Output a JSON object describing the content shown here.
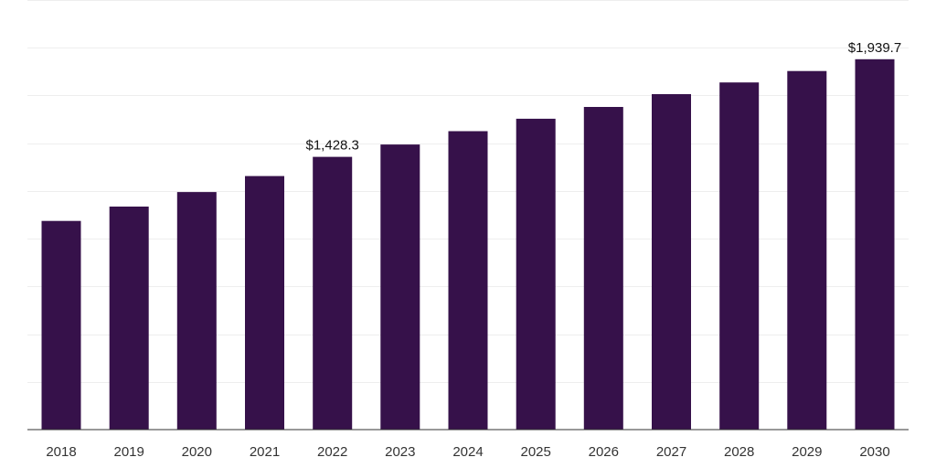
{
  "chart_data": {
    "type": "bar",
    "categories": [
      "2018",
      "2019",
      "2020",
      "2021",
      "2022",
      "2023",
      "2024",
      "2025",
      "2026",
      "2027",
      "2028",
      "2029",
      "2030"
    ],
    "values": [
      1093,
      1168,
      1244,
      1328,
      1428.3,
      1493,
      1563,
      1628,
      1690,
      1757,
      1818,
      1878,
      1939.7
    ],
    "data_labels": [
      {
        "index": 4,
        "text": "$1,428.3"
      },
      {
        "index": 12,
        "text": "$1,939.7"
      }
    ],
    "title": "",
    "xlabel": "",
    "ylabel": "",
    "ylim": [
      0,
      2250
    ],
    "grid": true,
    "grid_step": 250,
    "legend": "none",
    "bar_color": "#36114a"
  }
}
